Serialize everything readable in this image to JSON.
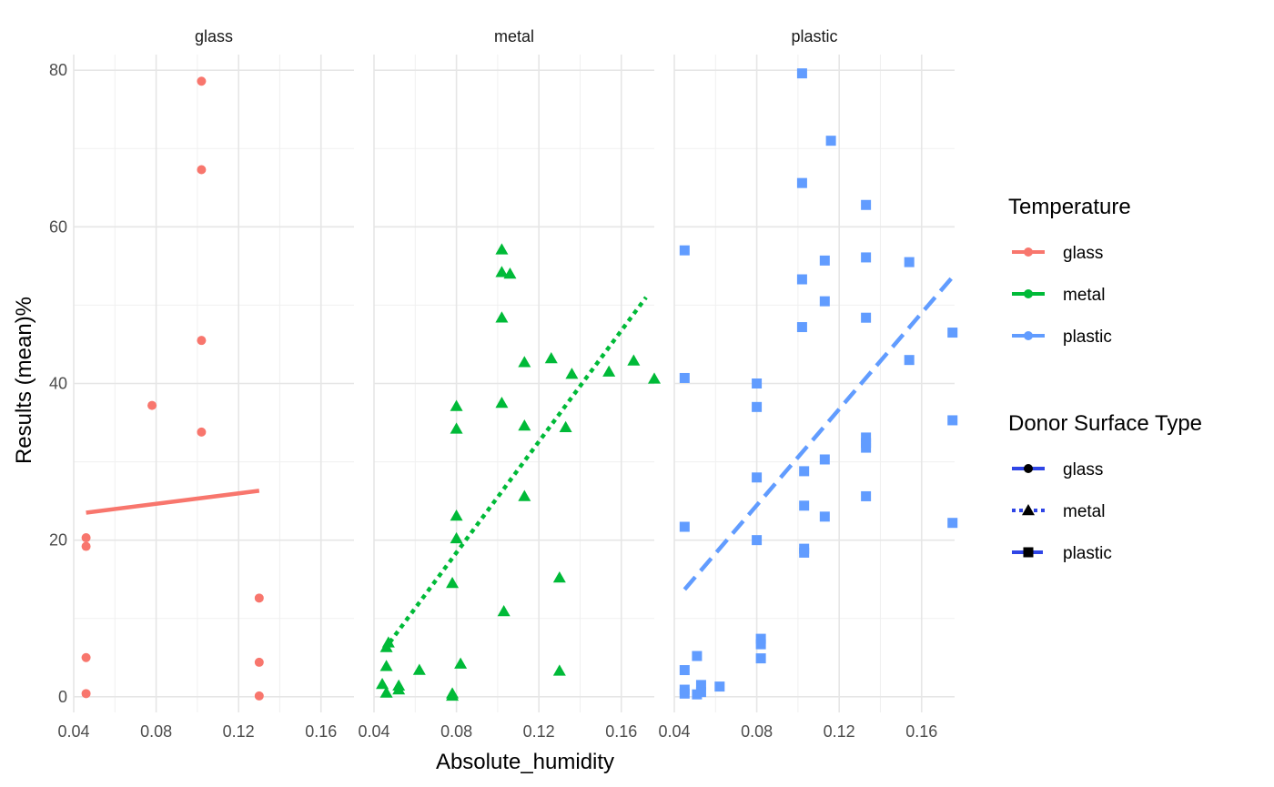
{
  "chart_data": {
    "type": "scatter",
    "xlabel": "Absolute_humidity",
    "ylabel": "Results (mean)%",
    "xlim": [
      0.04,
      0.176
    ],
    "ylim": [
      -2,
      82
    ],
    "x_ticks": [
      "0.04",
      "0.08",
      "0.12",
      "0.16"
    ],
    "y_ticks": [
      "0",
      "20",
      "40",
      "60",
      "80"
    ],
    "grid": true,
    "legends": {
      "color": {
        "title": "Temperature",
        "entries": [
          "glass",
          "metal",
          "plastic"
        ]
      },
      "linetype_shape": {
        "title": "Donor Surface Type",
        "entries": [
          "glass",
          "metal",
          "plastic"
        ]
      }
    },
    "facets": [
      {
        "label": "glass",
        "color": "#F8766D",
        "shape": "circle",
        "linetype": "solid",
        "points": [
          [
            0.046,
            0.4
          ],
          [
            0.046,
            5.0
          ],
          [
            0.046,
            19.2
          ],
          [
            0.046,
            20.3
          ],
          [
            0.078,
            37.2
          ],
          [
            0.102,
            78.6
          ],
          [
            0.102,
            67.3
          ],
          [
            0.102,
            45.5
          ],
          [
            0.102,
            33.8
          ],
          [
            0.13,
            12.6
          ],
          [
            0.13,
            4.4
          ],
          [
            0.13,
            0.1
          ]
        ],
        "fit": [
          [
            0.046,
            23.5
          ],
          [
            0.13,
            26.3
          ]
        ]
      },
      {
        "label": "metal",
        "color": "#00BA38",
        "shape": "triangle",
        "linetype": "dotted",
        "points": [
          [
            0.044,
            1.6
          ],
          [
            0.046,
            0.5
          ],
          [
            0.046,
            3.9
          ],
          [
            0.046,
            6.3
          ],
          [
            0.047,
            6.9
          ],
          [
            0.052,
            0.9
          ],
          [
            0.052,
            1.4
          ],
          [
            0.062,
            3.4
          ],
          [
            0.078,
            0.1
          ],
          [
            0.078,
            0.4
          ],
          [
            0.078,
            14.5
          ],
          [
            0.08,
            37.1
          ],
          [
            0.08,
            34.2
          ],
          [
            0.08,
            23.1
          ],
          [
            0.08,
            20.2
          ],
          [
            0.082,
            4.2
          ],
          [
            0.102,
            57.1
          ],
          [
            0.102,
            54.2
          ],
          [
            0.102,
            48.4
          ],
          [
            0.102,
            37.5
          ],
          [
            0.103,
            10.9
          ],
          [
            0.106,
            54.0
          ],
          [
            0.113,
            42.7
          ],
          [
            0.113,
            34.6
          ],
          [
            0.113,
            25.6
          ],
          [
            0.126,
            43.2
          ],
          [
            0.13,
            15.2
          ],
          [
            0.13,
            3.3
          ],
          [
            0.133,
            34.4
          ],
          [
            0.136,
            41.2
          ],
          [
            0.154,
            41.5
          ],
          [
            0.166,
            42.9
          ],
          [
            0.176,
            40.6
          ]
        ],
        "fit": [
          [
            0.045,
            6.0
          ],
          [
            0.172,
            51.0
          ]
        ]
      },
      {
        "label": "plastic",
        "color": "#619CFF",
        "shape": "square",
        "linetype": "dashed",
        "points": [
          [
            0.045,
            57.0
          ],
          [
            0.045,
            40.7
          ],
          [
            0.045,
            21.7
          ],
          [
            0.045,
            3.4
          ],
          [
            0.045,
            0.9
          ],
          [
            0.045,
            0.4
          ],
          [
            0.051,
            5.2
          ],
          [
            0.051,
            0.3
          ],
          [
            0.053,
            1.5
          ],
          [
            0.053,
            0.6
          ],
          [
            0.062,
            1.3
          ],
          [
            0.08,
            40.0
          ],
          [
            0.08,
            37.0
          ],
          [
            0.08,
            28.0
          ],
          [
            0.08,
            20.0
          ],
          [
            0.082,
            7.4
          ],
          [
            0.082,
            6.7
          ],
          [
            0.082,
            4.9
          ],
          [
            0.102,
            79.6
          ],
          [
            0.102,
            65.6
          ],
          [
            0.102,
            53.3
          ],
          [
            0.102,
            47.2
          ],
          [
            0.103,
            28.8
          ],
          [
            0.103,
            24.4
          ],
          [
            0.103,
            18.9
          ],
          [
            0.103,
            18.4
          ],
          [
            0.113,
            55.7
          ],
          [
            0.113,
            50.5
          ],
          [
            0.113,
            30.3
          ],
          [
            0.113,
            23.0
          ],
          [
            0.116,
            71.0
          ],
          [
            0.133,
            62.8
          ],
          [
            0.133,
            56.1
          ],
          [
            0.133,
            48.4
          ],
          [
            0.133,
            33.1
          ],
          [
            0.133,
            32.4
          ],
          [
            0.133,
            31.8
          ],
          [
            0.133,
            25.6
          ],
          [
            0.154,
            55.5
          ],
          [
            0.154,
            43.0
          ],
          [
            0.175,
            46.5
          ],
          [
            0.175,
            35.3
          ],
          [
            0.175,
            22.2
          ]
        ],
        "fit": [
          [
            0.045,
            13.7
          ],
          [
            0.175,
            53.6
          ]
        ]
      }
    ]
  }
}
